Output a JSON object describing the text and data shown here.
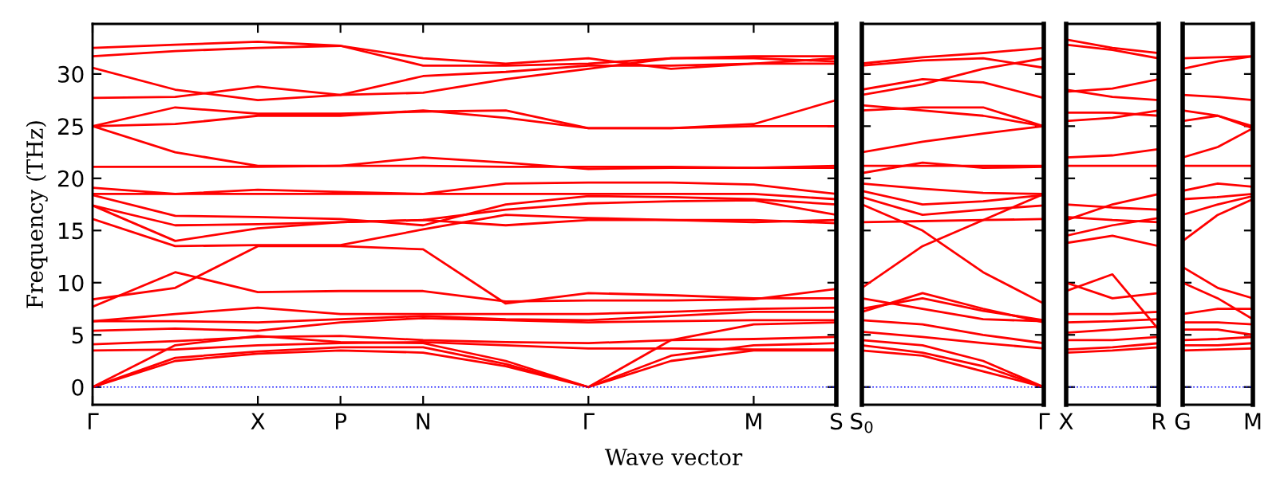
{
  "chart_data": [
    {
      "type": "line",
      "ylabel": "Frequency (THz)",
      "xlabel": "Wave vector",
      "ylim": [
        -1.7,
        34.8
      ],
      "yticks": [
        0,
        5,
        10,
        15,
        20,
        25,
        30
      ],
      "categories": [
        "Γ",
        null,
        "X",
        "P",
        "N",
        null,
        "Γ",
        null,
        "M",
        "S"
      ],
      "ref_lines": [
        {
          "axis": "y",
          "value": 0,
          "color": "#0000ff",
          "line_style": "dotted"
        }
      ],
      "series": [
        {
          "color": "#ff0000",
          "values": [
            0,
            2.5,
            3.2,
            3.5,
            3.3,
            2,
            0,
            2.5,
            3.5,
            3.5
          ]
        },
        {
          "color": "#ff0000",
          "values": [
            0,
            2.8,
            3.4,
            3.8,
            3.8,
            2.2,
            0,
            3,
            4,
            4.2
          ]
        },
        {
          "color": "#ff0000",
          "values": [
            0,
            4,
            4.9,
            4.3,
            4.2,
            2.5,
            0,
            4.5,
            6,
            6.2
          ]
        },
        {
          "color": "#ff0000",
          "values": [
            3.5,
            3.6,
            4.0,
            4.2,
            4.3,
            4.0,
            3.7,
            3.7,
            3.6,
            3.6
          ]
        },
        {
          "color": "#ff0000",
          "values": [
            4.1,
            4.4,
            4.8,
            4.9,
            4.5,
            4.3,
            4.2,
            4.5,
            4.6,
            4.8
          ]
        },
        {
          "color": "#ff0000",
          "values": [
            5.4,
            5.6,
            5.4,
            6.2,
            6.6,
            6.4,
            6.2,
            6.3,
            6.4,
            6.4
          ]
        },
        {
          "color": "#ff0000",
          "values": [
            6.3,
            6.3,
            6.2,
            6.5,
            6.8,
            6.5,
            6.4,
            6.8,
            7.2,
            7.2
          ]
        },
        {
          "color": "#ff0000",
          "values": [
            6.3,
            7.0,
            7.6,
            7.0,
            7.0,
            7.0,
            7.0,
            7.2,
            7.5,
            7.6
          ]
        },
        {
          "color": "#ff0000",
          "values": [
            7.7,
            11.0,
            9.1,
            9.2,
            9.2,
            8.2,
            8.3,
            8.3,
            8.4,
            9.4
          ]
        },
        {
          "color": "#ff0000",
          "values": [
            8.4,
            9.5,
            13.5,
            13.5,
            13.2,
            8.0,
            9.0,
            8.8,
            8.5,
            8.5
          ]
        },
        {
          "color": "#ff0000",
          "values": [
            16.1,
            13.5,
            13.6,
            13.6,
            15.1,
            16.5,
            16.2,
            16.0,
            15.8,
            16.0
          ]
        },
        {
          "color": "#ff0000",
          "values": [
            17.4,
            15.5,
            15.6,
            15.8,
            16.0,
            17.0,
            17.6,
            17.8,
            17.9,
            16.5
          ]
        },
        {
          "color": "#ff0000",
          "values": [
            18.4,
            16.4,
            16.3,
            16.1,
            15.5,
            17.5,
            18.3,
            18.2,
            18.0,
            17.5
          ]
        },
        {
          "color": "#ff0000",
          "values": [
            18.5,
            18.5,
            18.5,
            18.5,
            18.5,
            18.5,
            18.5,
            18.5,
            18.5,
            18.0
          ]
        },
        {
          "color": "#ff0000",
          "values": [
            19.1,
            18.5,
            18.9,
            18.7,
            18.5,
            19.5,
            19.6,
            19.6,
            19.4,
            18.5
          ]
        },
        {
          "color": "#ff0000",
          "values": [
            21.1,
            21.1,
            21.1,
            21.2,
            21.2,
            21.1,
            21.1,
            21.1,
            21.0,
            21.0
          ]
        },
        {
          "color": "#ff0000",
          "values": [
            25,
            22.5,
            21.2,
            21.2,
            22.0,
            21.5,
            20.9,
            21.0,
            21.0,
            21.2
          ]
        },
        {
          "color": "#ff0000",
          "values": [
            25,
            25.2,
            26.0,
            26.0,
            26.5,
            25.8,
            24.8,
            24.8,
            25.0,
            25.0
          ]
        },
        {
          "color": "#ff0000",
          "values": [
            25,
            26.8,
            26.2,
            26.2,
            26.4,
            26.5,
            24.8,
            24.8,
            25.2,
            27.5
          ]
        },
        {
          "color": "#ff0000",
          "values": [
            27.7,
            27.8,
            28.8,
            28.0,
            29.8,
            30.2,
            30.8,
            30.8,
            31.0,
            31.0
          ]
        },
        {
          "color": "#ff0000",
          "values": [
            30.6,
            28.5,
            27.5,
            28.0,
            28.2,
            29.5,
            30.5,
            31.5,
            31.5,
            31.2
          ]
        },
        {
          "color": "#ff0000",
          "values": [
            31.7,
            32.2,
            32.5,
            32.7,
            30.8,
            30.8,
            31.0,
            31.5,
            31.7,
            31.7
          ]
        },
        {
          "color": "#ff0000",
          "values": [
            32.5,
            32.8,
            33.1,
            32.7,
            31.5,
            31.0,
            31.5,
            30.5,
            31.0,
            31.5
          ]
        },
        {
          "color": "#ff0000",
          "values": [
            17.4,
            14.0,
            15.2,
            15.8,
            16.0,
            15.5,
            16.0,
            16.0,
            16.0,
            15.7
          ]
        }
      ]
    },
    {
      "type": "line",
      "tick_labels": "x",
      "ylim": [
        -1.7,
        34.8
      ],
      "yticks": [
        0,
        5,
        10,
        15,
        20,
        25,
        30
      ],
      "categories": [
        "S$_{0}$",
        null,
        null,
        "Γ"
      ],
      "ref_lines": [
        {
          "axis": "y",
          "value": 0,
          "color": "#0000ff",
          "line_style": "dotted"
        }
      ],
      "series": [
        {
          "color": "#ff0000",
          "values": [
            3.5,
            3.0,
            1.5,
            0
          ]
        },
        {
          "color": "#ff0000",
          "values": [
            4.0,
            3.3,
            2.0,
            0
          ]
        },
        {
          "color": "#ff0000",
          "values": [
            4.5,
            4.0,
            2.5,
            0
          ]
        },
        {
          "color": "#ff0000",
          "values": [
            5.3,
            4.8,
            4.2,
            3.7
          ]
        },
        {
          "color": "#ff0000",
          "values": [
            6.4,
            6.0,
            5.0,
            4.2
          ]
        },
        {
          "color": "#ff0000",
          "values": [
            7.2,
            9.0,
            7.5,
            6.2
          ]
        },
        {
          "color": "#ff0000",
          "values": [
            7.5,
            8.5,
            7.3,
            6.4
          ]
        },
        {
          "color": "#ff0000",
          "values": [
            8.5,
            7.5,
            6.5,
            6.3
          ]
        },
        {
          "color": "#ff0000",
          "values": [
            9.5,
            13.5,
            16.0,
            18.5
          ]
        },
        {
          "color": "#ff0000",
          "values": [
            15.8,
            15.9,
            16.0,
            16.1
          ]
        },
        {
          "color": "#ff0000",
          "values": [
            17.5,
            15.0,
            11.0,
            8.0
          ]
        },
        {
          "color": "#ff0000",
          "values": [
            18.2,
            16.5,
            17.0,
            17.4
          ]
        },
        {
          "color": "#ff0000",
          "values": [
            18.8,
            17.5,
            17.8,
            18.4
          ]
        },
        {
          "color": "#ff0000",
          "values": [
            19.5,
            19.0,
            18.6,
            18.5
          ]
        },
        {
          "color": "#ff0000",
          "values": [
            20.5,
            21.5,
            21.0,
            21.1
          ]
        },
        {
          "color": "#ff0000",
          "values": [
            21.2,
            21.2,
            21.2,
            21.2
          ]
        },
        {
          "color": "#ff0000",
          "values": [
            22.5,
            23.5,
            24.3,
            25.0
          ]
        },
        {
          "color": "#ff0000",
          "values": [
            27.0,
            26.5,
            26.0,
            25.0
          ]
        },
        {
          "color": "#ff0000",
          "values": [
            26.5,
            26.8,
            26.8,
            25.0
          ]
        },
        {
          "color": "#ff0000",
          "values": [
            28.0,
            29.0,
            30.5,
            31.5
          ]
        },
        {
          "color": "#ff0000",
          "values": [
            28.5,
            29.5,
            29.2,
            27.7
          ]
        },
        {
          "color": "#ff0000",
          "values": [
            31.0,
            31.6,
            32.0,
            32.5
          ]
        },
        {
          "color": "#ff0000",
          "values": [
            30.8,
            31.3,
            31.5,
            30.6
          ]
        }
      ]
    },
    {
      "type": "line",
      "tick_labels": "x",
      "ylim": [
        -1.7,
        34.8
      ],
      "yticks": [
        0,
        5,
        10,
        15,
        20,
        25,
        30
      ],
      "categories": [
        "X",
        null,
        "R"
      ],
      "ref_lines": [
        {
          "axis": "y",
          "value": 0,
          "color": "#0000ff",
          "line_style": "dotted"
        }
      ],
      "series": [
        {
          "color": "#ff0000",
          "values": [
            3.3,
            3.5,
            3.8
          ]
        },
        {
          "color": "#ff0000",
          "values": [
            3.6,
            3.8,
            4.2
          ]
        },
        {
          "color": "#ff0000",
          "values": [
            4.5,
            4.5,
            4.8
          ]
        },
        {
          "color": "#ff0000",
          "values": [
            5.2,
            5.5,
            5.8
          ]
        },
        {
          "color": "#ff0000",
          "values": [
            6.2,
            6.3,
            6.5
          ]
        },
        {
          "color": "#ff0000",
          "values": [
            7.0,
            7.0,
            7.2
          ]
        },
        {
          "color": "#ff0000",
          "values": [
            9.2,
            10.8,
            5.5
          ]
        },
        {
          "color": "#ff0000",
          "values": [
            10.0,
            8.5,
            9.0
          ]
        },
        {
          "color": "#ff0000",
          "values": [
            13.8,
            14.5,
            13.5
          ]
        },
        {
          "color": "#ff0000",
          "values": [
            14.5,
            15.5,
            16.2
          ]
        },
        {
          "color": "#ff0000",
          "values": [
            16.3,
            16.0,
            15.8
          ]
        },
        {
          "color": "#ff0000",
          "values": [
            16.0,
            17.5,
            18.5
          ]
        },
        {
          "color": "#ff0000",
          "values": [
            17.5,
            17.2,
            17.0
          ]
        },
        {
          "color": "#ff0000",
          "values": [
            21.2,
            21.2,
            21.2
          ]
        },
        {
          "color": "#ff0000",
          "values": [
            22.0,
            22.2,
            22.8
          ]
        },
        {
          "color": "#ff0000",
          "values": [
            25.5,
            25.8,
            26.5
          ]
        },
        {
          "color": "#ff0000",
          "values": [
            26.3,
            26.3,
            26.0
          ]
        },
        {
          "color": "#ff0000",
          "values": [
            28.5,
            27.8,
            27.5
          ]
        },
        {
          "color": "#ff0000",
          "values": [
            28.3,
            28.6,
            29.5
          ]
        },
        {
          "color": "#ff0000",
          "values": [
            32.8,
            32.3,
            31.5
          ]
        },
        {
          "color": "#ff0000",
          "values": [
            33.3,
            32.5,
            32.0
          ]
        }
      ]
    },
    {
      "type": "line",
      "tick_labels": "x",
      "ylim": [
        -1.7,
        34.8
      ],
      "yticks": [
        0,
        5,
        10,
        15,
        20,
        25,
        30
      ],
      "categories": [
        "G",
        null,
        "M"
      ],
      "ref_lines": [
        {
          "axis": "y",
          "value": 0,
          "color": "#0000ff",
          "line_style": "dotted"
        }
      ],
      "series": [
        {
          "color": "#ff0000",
          "values": [
            3.5,
            3.6,
            3.7
          ]
        },
        {
          "color": "#ff0000",
          "values": [
            4.0,
            4.0,
            4.2
          ]
        },
        {
          "color": "#ff0000",
          "values": [
            4.5,
            4.6,
            4.8
          ]
        },
        {
          "color": "#ff0000",
          "values": [
            5.5,
            5.5,
            5.0
          ]
        },
        {
          "color": "#ff0000",
          "values": [
            6.2,
            6.2,
            6.0
          ]
        },
        {
          "color": "#ff0000",
          "values": [
            7.0,
            7.5,
            7.5
          ]
        },
        {
          "color": "#ff0000",
          "values": [
            10.0,
            8.5,
            6.5
          ]
        },
        {
          "color": "#ff0000",
          "values": [
            11.5,
            9.5,
            8.5
          ]
        },
        {
          "color": "#ff0000",
          "values": [
            14.0,
            16.5,
            18.0
          ]
        },
        {
          "color": "#ff0000",
          "values": [
            16.5,
            17.5,
            18.3
          ]
        },
        {
          "color": "#ff0000",
          "values": [
            18.0,
            18.2,
            18.5
          ]
        },
        {
          "color": "#ff0000",
          "values": [
            18.8,
            19.5,
            19.2
          ]
        },
        {
          "color": "#ff0000",
          "values": [
            21.2,
            21.2,
            21.2
          ]
        },
        {
          "color": "#ff0000",
          "values": [
            22.0,
            23.0,
            24.8
          ]
        },
        {
          "color": "#ff0000",
          "values": [
            25.5,
            26.0,
            25.0
          ]
        },
        {
          "color": "#ff0000",
          "values": [
            26.5,
            26.0,
            24.8
          ]
        },
        {
          "color": "#ff0000",
          "values": [
            28.0,
            27.8,
            27.5
          ]
        },
        {
          "color": "#ff0000",
          "values": [
            30.5,
            31.2,
            31.7
          ]
        },
        {
          "color": "#ff0000",
          "values": [
            31.5,
            31.6,
            31.7
          ]
        }
      ]
    }
  ]
}
